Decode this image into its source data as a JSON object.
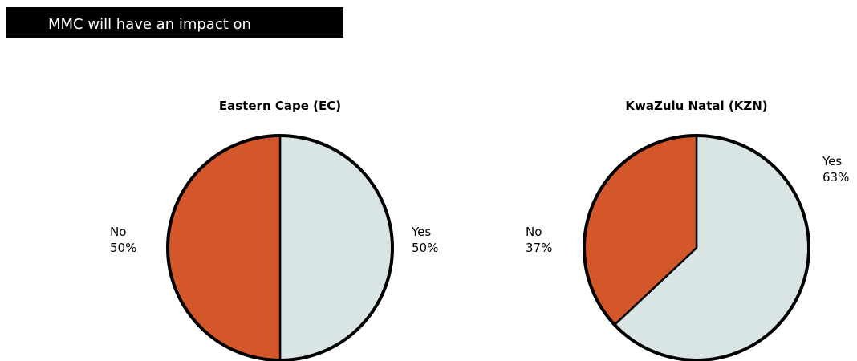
{
  "header": {
    "title": "MMC will have an impact on"
  },
  "colors": {
    "header_bg": "#000000",
    "header_text": "#ffffff",
    "yes": "#d9e5e4",
    "no": "#d4562b",
    "outline": "#000000"
  },
  "chart_data": [
    {
      "type": "pie",
      "title": "Eastern Cape (EC)",
      "slices": [
        {
          "label": "Yes",
          "value": 50,
          "value_label": "50%"
        },
        {
          "label": "No",
          "value": 50,
          "value_label": "50%"
        }
      ]
    },
    {
      "type": "pie",
      "title": "KwaZulu Natal (KZN)",
      "slices": [
        {
          "label": "Yes",
          "value": 63,
          "value_label": "63%"
        },
        {
          "label": "No",
          "value": 37,
          "value_label": "37%"
        }
      ]
    }
  ]
}
